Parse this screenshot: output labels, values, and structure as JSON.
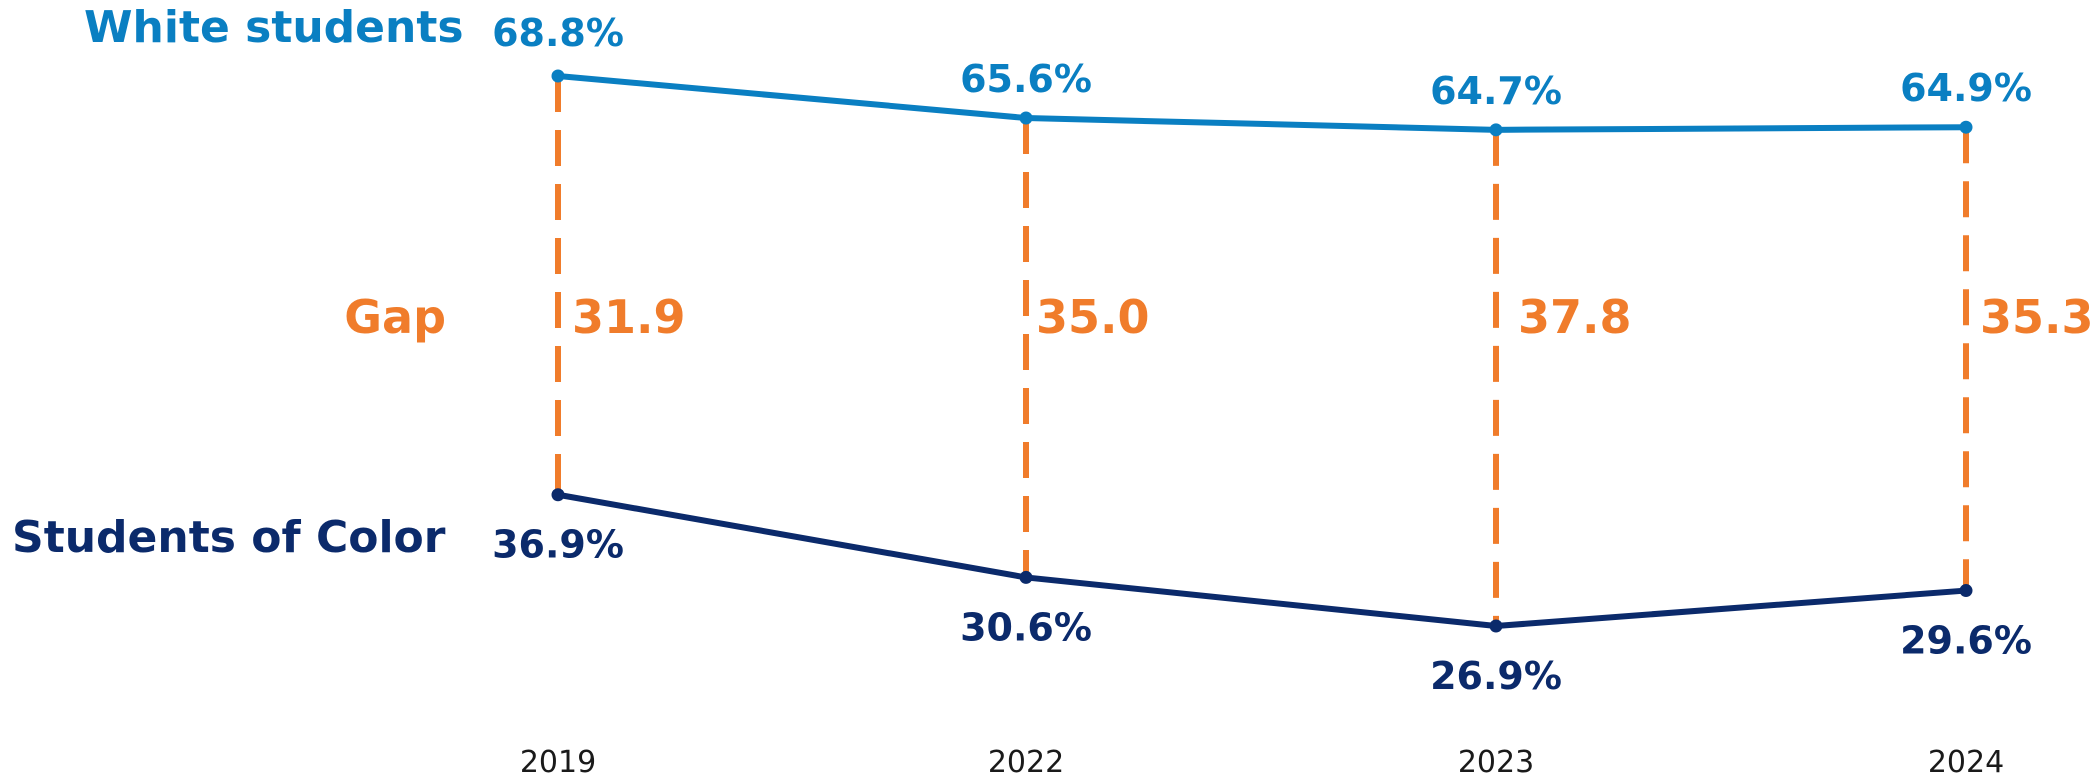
{
  "chart_data": {
    "type": "line",
    "categories": [
      "2019",
      "2022",
      "2023",
      "2024"
    ],
    "series": [
      {
        "name": "White students",
        "values": [
          68.8,
          65.6,
          64.7,
          64.9
        ],
        "labels": [
          "68.8%",
          "65.6%",
          "64.7%",
          "64.9%"
        ],
        "color": "#0A7FC2"
      },
      {
        "name": "Students of Color",
        "values": [
          36.9,
          30.6,
          26.9,
          29.6
        ],
        "labels": [
          "36.9%",
          "30.6%",
          "26.9%",
          "29.6%"
        ],
        "color": "#0B2A6B"
      }
    ],
    "gap": {
      "label": "Gap",
      "values": [
        31.9,
        35.0,
        37.8,
        35.3
      ],
      "labels": [
        "31.9",
        "35.0",
        "37.8",
        "35.3"
      ],
      "color": "#F07C2B",
      "style": "dashed"
    },
    "title": "",
    "xlabel": "",
    "ylabel": "",
    "grid": false,
    "legend": "left, inline labels"
  }
}
